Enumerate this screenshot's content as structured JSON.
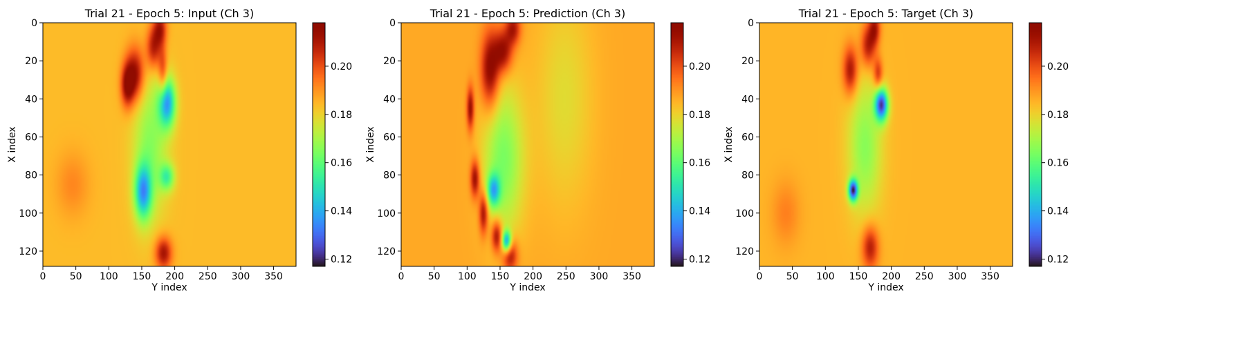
{
  "chart_data": [
    {
      "type": "heatmap",
      "title": "Trial 21 - Epoch 5: Input (Ch 3)",
      "xlabel": "Y index",
      "ylabel": "X index",
      "xlim": [
        0,
        384
      ],
      "ylim": [
        128,
        0
      ],
      "xticks": [
        0,
        50,
        100,
        150,
        200,
        250,
        300,
        350
      ],
      "yticks": [
        0,
        20,
        40,
        60,
        80,
        100,
        120
      ],
      "colorbar": {
        "min": 0.117,
        "max": 0.218,
        "ticks": [
          0.12,
          0.14,
          0.16,
          0.18,
          0.2
        ],
        "tick_labels": [
          "0.12",
          "0.14",
          "0.16",
          "0.18",
          "0.20"
        ],
        "colormap": "turbo"
      },
      "background_value": 0.184,
      "features": [
        {
          "x": 140,
          "y": 27,
          "sx": 10,
          "sy": 10,
          "value": 0.214
        },
        {
          "x": 128,
          "y": 33,
          "sx": 7,
          "sy": 8,
          "value": 0.212
        },
        {
          "x": 168,
          "y": 13,
          "sx": 8,
          "sy": 8,
          "value": 0.21
        },
        {
          "x": 178,
          "y": 3,
          "sx": 7,
          "sy": 6,
          "value": 0.208
        },
        {
          "x": 182,
          "y": 27,
          "sx": 5,
          "sy": 10,
          "value": 0.205
        },
        {
          "x": 183,
          "y": 121,
          "sx": 9,
          "sy": 6,
          "value": 0.212
        },
        {
          "x": 188,
          "y": 42,
          "sx": 9,
          "sy": 9,
          "value": 0.138
        },
        {
          "x": 152,
          "y": 89,
          "sx": 9,
          "sy": 10,
          "value": 0.142
        },
        {
          "x": 163,
          "y": 64,
          "sx": 18,
          "sy": 26,
          "value": 0.166
        },
        {
          "x": 188,
          "y": 81,
          "sx": 8,
          "sy": 5,
          "value": 0.158
        },
        {
          "x": 45,
          "y": 85,
          "sx": 18,
          "sy": 12,
          "value": 0.192
        }
      ]
    },
    {
      "type": "heatmap",
      "title": "Trial 21 - Epoch 5: Prediction (Ch 3)",
      "xlabel": "Y index",
      "ylabel": "X index",
      "xlim": [
        0,
        384
      ],
      "ylim": [
        128,
        0
      ],
      "xticks": [
        0,
        50,
        100,
        150,
        200,
        250,
        300,
        350
      ],
      "yticks": [
        0,
        20,
        40,
        60,
        80,
        100,
        120
      ],
      "colorbar": {
        "min": 0.117,
        "max": 0.218,
        "ticks": [
          0.12,
          0.14,
          0.16,
          0.18,
          0.2
        ],
        "tick_labels": [
          "0.12",
          "0.14",
          "0.16",
          "0.18",
          "0.20"
        ],
        "colormap": "turbo"
      },
      "background_value": 0.187,
      "features": [
        {
          "x": 135,
          "y": 25,
          "sx": 10,
          "sy": 14,
          "value": 0.218
        },
        {
          "x": 155,
          "y": 15,
          "sx": 10,
          "sy": 8,
          "value": 0.214
        },
        {
          "x": 170,
          "y": 3,
          "sx": 8,
          "sy": 6,
          "value": 0.21
        },
        {
          "x": 105,
          "y": 45,
          "sx": 4,
          "sy": 8,
          "value": 0.214
        },
        {
          "x": 112,
          "y": 82,
          "sx": 5,
          "sy": 7,
          "value": 0.215
        },
        {
          "x": 125,
          "y": 100,
          "sx": 5,
          "sy": 8,
          "value": 0.215
        },
        {
          "x": 145,
          "y": 112,
          "sx": 6,
          "sy": 6,
          "value": 0.216
        },
        {
          "x": 165,
          "y": 122,
          "sx": 8,
          "sy": 6,
          "value": 0.214
        },
        {
          "x": 160,
          "y": 115,
          "sx": 5,
          "sy": 4,
          "value": 0.138
        },
        {
          "x": 155,
          "y": 72,
          "sx": 22,
          "sy": 28,
          "value": 0.164
        },
        {
          "x": 140,
          "y": 88,
          "sx": 7,
          "sy": 6,
          "value": 0.152
        },
        {
          "x": 248,
          "y": 40,
          "sx": 30,
          "sy": 40,
          "value": 0.178
        }
      ]
    },
    {
      "type": "heatmap",
      "title": "Trial 21 - Epoch 5: Target (Ch 3)",
      "xlabel": "Y index",
      "ylabel": "X index",
      "xlim": [
        0,
        384
      ],
      "ylim": [
        128,
        0
      ],
      "xticks": [
        0,
        50,
        100,
        150,
        200,
        250,
        300,
        350
      ],
      "yticks": [
        0,
        20,
        40,
        60,
        80,
        100,
        120
      ],
      "colorbar": {
        "min": 0.117,
        "max": 0.218,
        "ticks": [
          0.12,
          0.14,
          0.16,
          0.18,
          0.2
        ],
        "tick_labels": [
          "0.12",
          "0.14",
          "0.16",
          "0.18",
          "0.20"
        ],
        "colormap": "turbo"
      },
      "background_value": 0.185,
      "features": [
        {
          "x": 138,
          "y": 25,
          "sx": 8,
          "sy": 9,
          "value": 0.212
        },
        {
          "x": 165,
          "y": 12,
          "sx": 8,
          "sy": 8,
          "value": 0.21
        },
        {
          "x": 175,
          "y": 3,
          "sx": 6,
          "sy": 6,
          "value": 0.208
        },
        {
          "x": 180,
          "y": 27,
          "sx": 5,
          "sy": 6,
          "value": 0.206
        },
        {
          "x": 168,
          "y": 118,
          "sx": 9,
          "sy": 8,
          "value": 0.21
        },
        {
          "x": 185,
          "y": 43,
          "sx": 7,
          "sy": 6,
          "value": 0.126
        },
        {
          "x": 142,
          "y": 88,
          "sx": 5,
          "sy": 4,
          "value": 0.125
        },
        {
          "x": 160,
          "y": 65,
          "sx": 18,
          "sy": 25,
          "value": 0.166
        },
        {
          "x": 40,
          "y": 100,
          "sx": 15,
          "sy": 12,
          "value": 0.193
        }
      ]
    }
  ]
}
